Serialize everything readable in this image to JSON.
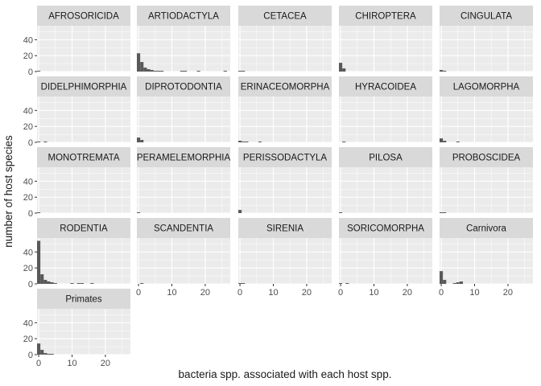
{
  "chart_data": {
    "type": "bar",
    "subtype": "faceted-histogram",
    "xlabel": "bacteria spp. associated with each host spp.",
    "ylabel": "number of host species",
    "x_ticks": [
      0,
      10,
      20
    ],
    "y_ticks": [
      0,
      20,
      40
    ],
    "xlim": [
      -0.5,
      27.5
    ],
    "ylim": [
      0,
      57.5
    ],
    "bin_width": 1,
    "grid": true,
    "colors": {
      "bar": "#595959",
      "panel_bg": "#ebebeb",
      "strip_bg": "#d9d9d9",
      "grid": "#ffffff",
      "text": "#1a1a1a",
      "axis_text": "#4d4d4d"
    },
    "facets": [
      {
        "name": "AFROSORICIDA",
        "bins": [
          [
            0,
            1
          ]
        ]
      },
      {
        "name": "ARTIODACTYLA",
        "bins": [
          [
            0,
            23
          ],
          [
            1,
            12
          ],
          [
            2,
            5
          ],
          [
            3,
            3
          ],
          [
            4,
            2
          ],
          [
            5,
            1
          ],
          [
            6,
            1
          ],
          [
            7,
            1
          ],
          [
            13,
            1
          ],
          [
            14,
            1
          ],
          [
            18,
            1
          ],
          [
            26,
            1
          ]
        ]
      },
      {
        "name": "CETACEA",
        "bins": [
          [
            0,
            1
          ],
          [
            1,
            1
          ]
        ]
      },
      {
        "name": "CHIROPTERA",
        "bins": [
          [
            0,
            11
          ],
          [
            1,
            4
          ]
        ]
      },
      {
        "name": "CINGULATA",
        "bins": [
          [
            0,
            2
          ],
          [
            1,
            1
          ]
        ]
      },
      {
        "name": "DIDELPHIMORPHIA",
        "bins": [
          [
            0,
            1
          ],
          [
            2,
            1
          ]
        ]
      },
      {
        "name": "DIPROTODONTIA",
        "bins": [
          [
            0,
            6
          ],
          [
            1,
            3
          ]
        ]
      },
      {
        "name": "ERINACEOMORPHA",
        "bins": [
          [
            0,
            2
          ],
          [
            1,
            1
          ],
          [
            2,
            1
          ],
          [
            6,
            1
          ]
        ]
      },
      {
        "name": "HYRACOIDEA",
        "bins": [
          [
            1,
            1
          ]
        ]
      },
      {
        "name": "LAGOMORPHA",
        "bins": [
          [
            0,
            5
          ],
          [
            1,
            2
          ],
          [
            5,
            1
          ]
        ]
      },
      {
        "name": "MONOTREMATA",
        "bins": [
          [
            0,
            1
          ]
        ]
      },
      {
        "name": "PERAMELEMORPHIA",
        "bins": [
          [
            0,
            1
          ]
        ]
      },
      {
        "name": "PERISSODACTYLA",
        "bins": [
          [
            0,
            4
          ]
        ]
      },
      {
        "name": "PILOSA",
        "bins": [
          [
            0,
            1
          ]
        ]
      },
      {
        "name": "PROBOSCIDEA",
        "bins": [
          [
            0,
            1
          ],
          [
            1,
            1
          ]
        ]
      },
      {
        "name": "RODENTIA",
        "bins": [
          [
            0,
            54
          ],
          [
            1,
            12
          ],
          [
            2,
            5
          ],
          [
            3,
            3
          ],
          [
            4,
            2
          ],
          [
            5,
            1
          ],
          [
            10,
            1
          ],
          [
            12,
            1
          ],
          [
            13,
            1
          ],
          [
            16,
            1
          ]
        ]
      },
      {
        "name": "SCANDENTIA",
        "bins": [
          [
            1,
            1
          ]
        ]
      },
      {
        "name": "SIRENIA",
        "bins": [
          [
            0,
            1
          ],
          [
            1,
            1
          ]
        ]
      },
      {
        "name": "SORICOMORPHA",
        "bins": [
          [
            0,
            1
          ],
          [
            2,
            1
          ]
        ]
      },
      {
        "name": "Carnivora",
        "bins": [
          [
            0,
            16
          ],
          [
            1,
            5
          ],
          [
            4,
            1
          ],
          [
            5,
            2
          ],
          [
            6,
            3
          ]
        ]
      },
      {
        "name": "Primates",
        "bins": [
          [
            0,
            14
          ],
          [
            1,
            6
          ],
          [
            2,
            2
          ],
          [
            3,
            1
          ],
          [
            4,
            1
          ]
        ]
      }
    ]
  }
}
